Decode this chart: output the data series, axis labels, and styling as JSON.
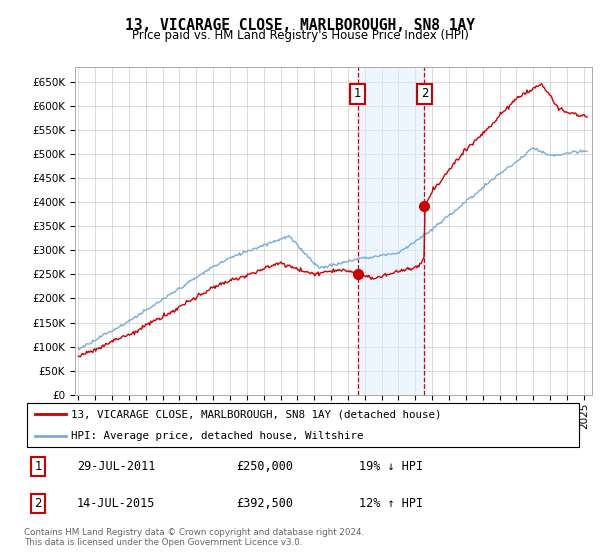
{
  "title": "13, VICARAGE CLOSE, MARLBOROUGH, SN8 1AY",
  "subtitle": "Price paid vs. HM Land Registry's House Price Index (HPI)",
  "ylim": [
    0,
    680000
  ],
  "xlim_start": 1994.8,
  "xlim_end": 2025.5,
  "transaction1_x": 2011.57,
  "transaction1_y": 250000,
  "transaction1_label": "1",
  "transaction2_x": 2015.54,
  "transaction2_y": 392500,
  "transaction2_label": "2",
  "legend_line1": "13, VICARAGE CLOSE, MARLBOROUGH, SN8 1AY (detached house)",
  "legend_line2": "HPI: Average price, detached house, Wiltshire",
  "table_row1_num": "1",
  "table_row1_date": "29-JUL-2011",
  "table_row1_price": "£250,000",
  "table_row1_hpi": "19% ↓ HPI",
  "table_row2_num": "2",
  "table_row2_date": "14-JUL-2015",
  "table_row2_price": "£392,500",
  "table_row2_hpi": "12% ↑ HPI",
  "footer": "Contains HM Land Registry data © Crown copyright and database right 2024.\nThis data is licensed under the Open Government Licence v3.0.",
  "line_color_red": "#cc0000",
  "line_color_blue": "#7aaddc",
  "grid_color": "#cccccc",
  "shading_color": "#ddeeff",
  "yticks": [
    0,
    50000,
    100000,
    150000,
    200000,
    250000,
    300000,
    350000,
    400000,
    450000,
    500000,
    550000,
    600000,
    650000
  ],
  "ytick_labels": [
    "£0",
    "£50K",
    "£100K",
    "£150K",
    "£200K",
    "£250K",
    "£300K",
    "£350K",
    "£400K",
    "£450K",
    "£500K",
    "£550K",
    "£600K",
    "£650K"
  ]
}
